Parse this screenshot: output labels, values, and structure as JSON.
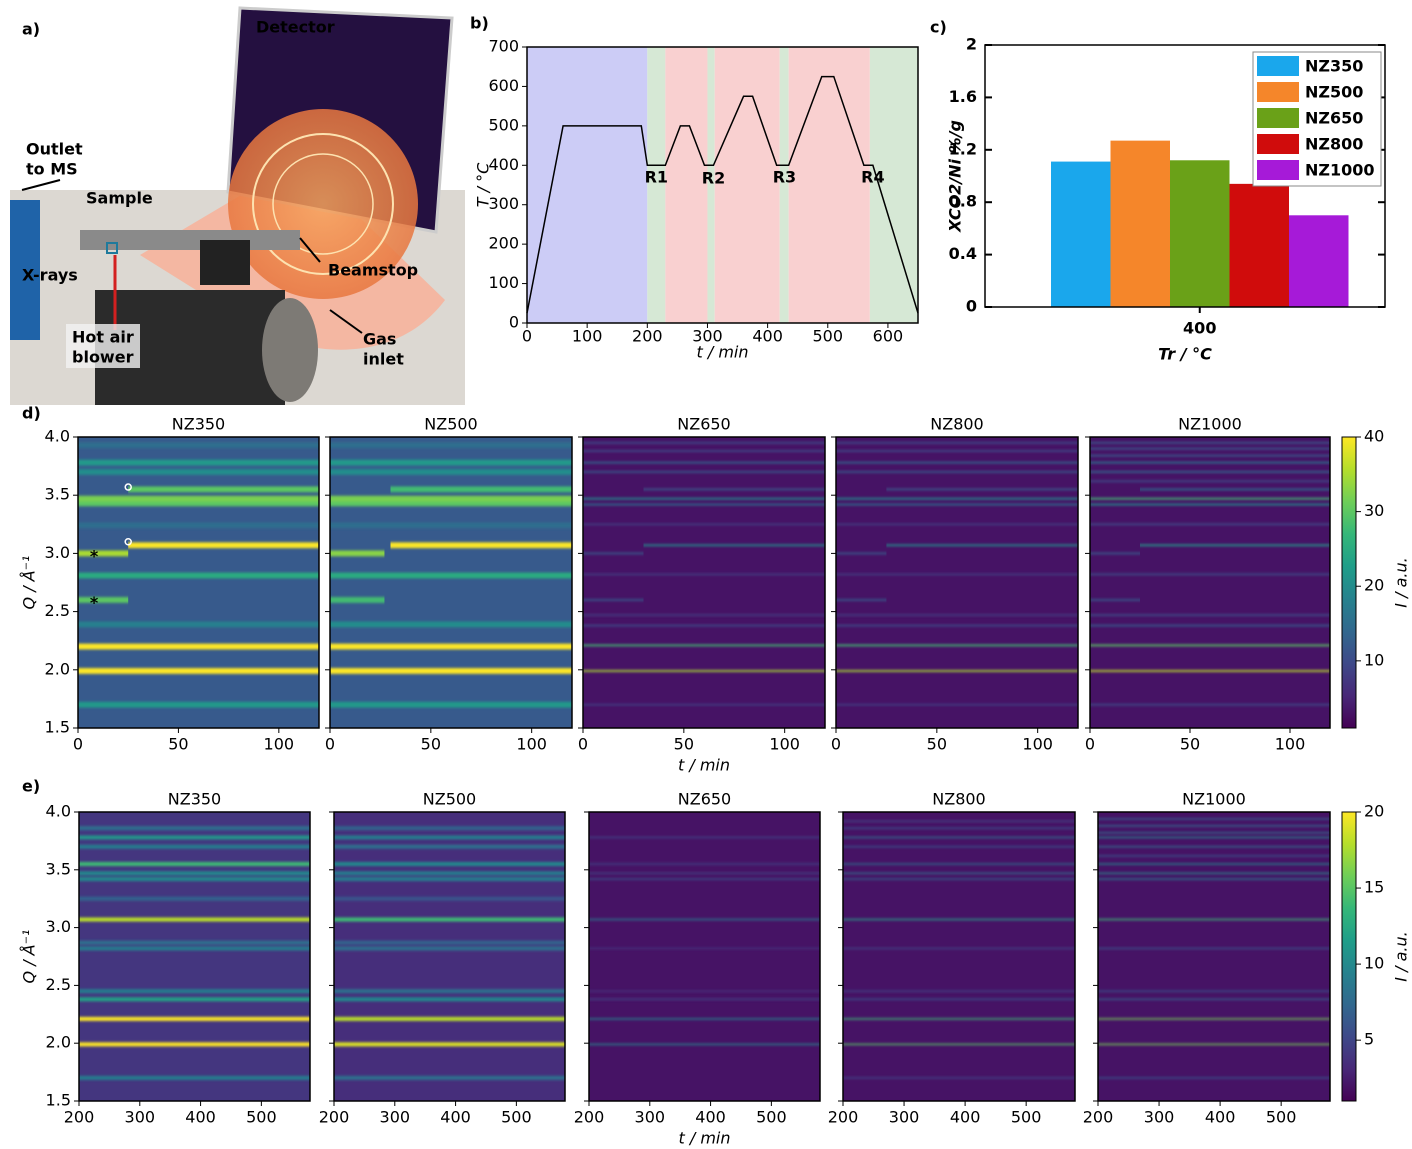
{
  "figure_a": {
    "label": "a)",
    "annotations": [
      {
        "lines": [
          "Detector"
        ],
        "color": "#ffffff"
      },
      {
        "lines": [
          "Outlet",
          "to MS"
        ],
        "color": "#000000"
      },
      {
        "lines": [
          "Sample"
        ],
        "color": "#1f7a9c"
      },
      {
        "lines": [
          "X-rays"
        ],
        "color": "#f08a24"
      },
      {
        "lines": [
          "Hot air",
          "blower"
        ],
        "color": "#d32020"
      },
      {
        "lines": [
          "Beamstop"
        ],
        "color": "#000000"
      },
      {
        "lines": [
          "Gas",
          "inlet"
        ],
        "color": "#000000"
      }
    ]
  },
  "chart_data": [
    {
      "type": "line",
      "panel_label": "b)",
      "x_label": "t / min",
      "y_label": "T / °C",
      "x": [
        0,
        60,
        190,
        200,
        230,
        255,
        270,
        295,
        310,
        360,
        375,
        415,
        435,
        490,
        510,
        560,
        575,
        650
      ],
      "values": [
        25,
        500,
        500,
        400,
        400,
        500,
        500,
        400,
        400,
        575,
        575,
        400,
        400,
        625,
        625,
        400,
        400,
        25
      ],
      "color": "#000000",
      "xlim": [
        0,
        650
      ],
      "xticks": [
        0,
        100,
        200,
        300,
        400,
        500,
        600
      ],
      "ylim": [
        0,
        700
      ],
      "yticks": [
        0,
        100,
        200,
        300,
        400,
        500,
        600,
        700
      ],
      "regions": [
        {
          "range": [
            0,
            200
          ],
          "color": "#ccccf6"
        },
        {
          "range": [
            200,
            230
          ],
          "color": "#d6e8d5"
        },
        {
          "range": [
            230,
            300
          ],
          "color": "#f9d0d0"
        },
        {
          "range": [
            300,
            312
          ],
          "color": "#d6e8d5"
        },
        {
          "range": [
            312,
            420
          ],
          "color": "#f9d0d0"
        },
        {
          "range": [
            420,
            435
          ],
          "color": "#d6e8d5"
        },
        {
          "range": [
            435,
            570
          ],
          "color": "#f9d0d0"
        },
        {
          "range": [
            570,
            650
          ],
          "color": "#d6e8d5"
        }
      ],
      "annotations": [
        {
          "text": "R1",
          "x": 215,
          "y": 368
        },
        {
          "text": "R2",
          "x": 310,
          "y": 365
        },
        {
          "text": "R3",
          "x": 428,
          "y": 368
        },
        {
          "text": "R4",
          "x": 575,
          "y": 368
        }
      ]
    },
    {
      "type": "bar",
      "panel_label": "c)",
      "x_label": "Tr / °C",
      "y_label": "XCO2/Ni %/g",
      "categories": [
        "400"
      ],
      "series": [
        {
          "name": "NZ350",
          "color": "#1aa7ec",
          "values": [
            1.11
          ]
        },
        {
          "name": "NZ500",
          "color": "#f5862a",
          "values": [
            1.27
          ]
        },
        {
          "name": "NZ650",
          "color": "#6aa118",
          "values": [
            1.12
          ]
        },
        {
          "name": "NZ800",
          "color": "#d00c0c",
          "values": [
            0.94
          ]
        },
        {
          "name": "NZ1000",
          "color": "#a61ad8",
          "values": [
            0.7
          ]
        }
      ],
      "ylim": [
        0,
        2
      ],
      "yticks": [
        0,
        0.4,
        0.8,
        1.2,
        1.6,
        2
      ],
      "legend": "upper right"
    },
    {
      "type": "heatmap",
      "panel_label": "d)",
      "x_label": "t / min",
      "y_label": "Q / Å⁻¹",
      "colorbar_label": "I / a.u.",
      "xlim": [
        0,
        120
      ],
      "xticks": [
        0,
        50,
        100
      ],
      "ylim": [
        1.5,
        4
      ],
      "yticks": [
        1.5,
        {
          "value": 2,
          "label": "2.0"
        },
        2.5,
        {
          "value": 3,
          "label": "3.0"
        },
        3.5,
        {
          "value": 4,
          "label": "4.0"
        }
      ],
      "zlim": [
        1,
        40
      ],
      "zticks": [
        10,
        20,
        30,
        40
      ],
      "panels": [
        {
          "title": "NZ350",
          "background": 12,
          "peak_width": 0.05,
          "bands": [
            [
              1.7,
              22
            ],
            [
              1.99,
              40
            ],
            [
              2.2,
              40
            ],
            [
              2.39,
              18
            ],
            [
              2.6,
              30,
              0,
              25
            ],
            [
              2.81,
              25
            ],
            [
              3.0,
              35,
              0,
              25
            ],
            [
              3.07,
              40,
              25,
              120
            ],
            [
              3.24,
              15
            ],
            [
              3.43,
              30
            ],
            [
              3.47,
              32
            ],
            [
              3.55,
              30,
              25,
              120
            ],
            [
              3.7,
              20
            ],
            [
              3.78,
              22
            ],
            [
              3.93,
              15
            ]
          ],
          "annotations": [
            {
              "text": "*",
              "t": 8,
              "q": 2.97
            },
            {
              "text": "*",
              "t": 8,
              "q": 2.57
            }
          ],
          "markers": [
            {
              "t": 25,
              "q": 3.57
            },
            {
              "t": 25,
              "q": 3.1
            }
          ]
        },
        {
          "title": "NZ500",
          "background": 12,
          "peak_width": 0.05,
          "bands": [
            [
              1.7,
              22
            ],
            [
              1.99,
              40
            ],
            [
              2.2,
              40
            ],
            [
              2.39,
              20
            ],
            [
              2.6,
              28,
              0,
              27
            ],
            [
              2.81,
              25
            ],
            [
              3.0,
              33,
              0,
              27
            ],
            [
              3.07,
              40,
              30,
              120
            ],
            [
              3.24,
              15
            ],
            [
              3.43,
              30
            ],
            [
              3.47,
              32
            ],
            [
              3.55,
              28,
              30,
              120
            ],
            [
              3.7,
              20
            ],
            [
              3.78,
              22
            ],
            [
              3.93,
              15
            ]
          ]
        },
        {
          "title": "NZ650",
          "background": 3,
          "peak_width": 0.015,
          "bands": [
            [
              1.7,
              8
            ],
            [
              1.99,
              35
            ],
            [
              2.21,
              28
            ],
            [
              2.38,
              10
            ],
            [
              2.47,
              8
            ],
            [
              2.6,
              12,
              0,
              30
            ],
            [
              2.82,
              8
            ],
            [
              3.0,
              12,
              0,
              30
            ],
            [
              3.07,
              20,
              30,
              120
            ],
            [
              3.25,
              8
            ],
            [
              3.42,
              15
            ],
            [
              3.47,
              20
            ],
            [
              3.55,
              12,
              30,
              120
            ],
            [
              3.7,
              12
            ],
            [
              3.78,
              14
            ],
            [
              3.88,
              10
            ],
            [
              3.95,
              10
            ]
          ]
        },
        {
          "title": "NZ800",
          "background": 3,
          "peak_width": 0.015,
          "bands": [
            [
              1.7,
              8
            ],
            [
              1.99,
              35
            ],
            [
              2.21,
              28
            ],
            [
              2.38,
              10
            ],
            [
              2.47,
              8
            ],
            [
              2.6,
              12,
              0,
              25
            ],
            [
              2.82,
              8
            ],
            [
              3.0,
              12,
              0,
              25
            ],
            [
              3.07,
              20,
              25,
              120
            ],
            [
              3.25,
              8
            ],
            [
              3.42,
              15
            ],
            [
              3.47,
              20
            ],
            [
              3.55,
              12,
              25,
              120
            ],
            [
              3.7,
              12
            ],
            [
              3.78,
              14
            ],
            [
              3.88,
              10
            ],
            [
              3.95,
              10
            ]
          ]
        },
        {
          "title": "NZ1000",
          "background": 3,
          "peak_width": 0.015,
          "bands": [
            [
              1.7,
              10
            ],
            [
              1.99,
              36
            ],
            [
              2.21,
              30
            ],
            [
              2.38,
              12
            ],
            [
              2.47,
              10
            ],
            [
              2.6,
              12,
              0,
              25
            ],
            [
              2.82,
              10
            ],
            [
              3.0,
              12,
              0,
              25
            ],
            [
              3.07,
              22,
              25,
              120
            ],
            [
              3.25,
              10
            ],
            [
              3.42,
              20
            ],
            [
              3.47,
              28
            ],
            [
              3.55,
              15,
              25,
              120
            ],
            [
              3.62,
              10
            ],
            [
              3.7,
              14
            ],
            [
              3.78,
              16
            ],
            [
              3.84,
              12
            ],
            [
              3.9,
              12
            ],
            [
              3.95,
              12
            ]
          ]
        }
      ]
    },
    {
      "type": "heatmap",
      "panel_label": "e)",
      "x_label": "t / min",
      "y_label": "Q / Å⁻¹",
      "colorbar_label": "I / a.u.",
      "xlim": [
        200,
        580
      ],
      "xticks": [
        200,
        300,
        400,
        500
      ],
      "ylim": [
        1.5,
        4
      ],
      "yticks": [
        1.5,
        {
          "value": 2,
          "label": "2.0"
        },
        2.5,
        {
          "value": 3,
          "label": "3.0"
        },
        3.5,
        {
          "value": 4,
          "label": "4.0"
        }
      ],
      "zlim": [
        1,
        20
      ],
      "zticks": [
        5,
        10,
        15,
        20
      ],
      "panels": [
        {
          "title": "NZ350",
          "background": 4,
          "peak_width": 0.035,
          "bands": [
            [
              1.7,
              9
            ],
            [
              1.99,
              20
            ],
            [
              2.21,
              20
            ],
            [
              2.38,
              12
            ],
            [
              2.45,
              9
            ],
            [
              2.82,
              9
            ],
            [
              2.87,
              8
            ],
            [
              3.07,
              18
            ],
            [
              3.25,
              7
            ],
            [
              3.42,
              10
            ],
            [
              3.47,
              10
            ],
            [
              3.55,
              14
            ],
            [
              3.7,
              9
            ],
            [
              3.78,
              11
            ],
            [
              3.86,
              8
            ]
          ]
        },
        {
          "title": "NZ500",
          "background": 3.5,
          "peak_width": 0.035,
          "bands": [
            [
              1.7,
              8
            ],
            [
              1.99,
              19
            ],
            [
              2.21,
              18
            ],
            [
              2.38,
              10
            ],
            [
              2.45,
              8
            ],
            [
              2.82,
              8
            ],
            [
              2.87,
              7
            ],
            [
              3.07,
              14
            ],
            [
              3.25,
              6
            ],
            [
              3.42,
              9
            ],
            [
              3.47,
              9
            ],
            [
              3.55,
              10
            ],
            [
              3.7,
              8
            ],
            [
              3.78,
              9
            ],
            [
              3.86,
              7
            ]
          ]
        },
        {
          "title": "NZ650",
          "background": 2,
          "peak_width": 0.012,
          "bands": [
            [
              1.99,
              10
            ],
            [
              2.21,
              10
            ],
            [
              2.38,
              5
            ],
            [
              2.45,
              4
            ],
            [
              2.82,
              4
            ],
            [
              3.07,
              9
            ],
            [
              3.42,
              6
            ],
            [
              3.47,
              5
            ],
            [
              3.55,
              5
            ],
            [
              3.78,
              5
            ]
          ]
        },
        {
          "title": "NZ800",
          "background": 2,
          "peak_width": 0.012,
          "bands": [
            [
              1.7,
              5
            ],
            [
              1.99,
              15
            ],
            [
              2.21,
              14
            ],
            [
              2.38,
              6
            ],
            [
              2.45,
              5
            ],
            [
              2.82,
              5
            ],
            [
              3.07,
              12
            ],
            [
              3.42,
              7
            ],
            [
              3.47,
              8
            ],
            [
              3.55,
              8
            ],
            [
              3.7,
              6
            ],
            [
              3.78,
              8
            ],
            [
              3.86,
              6
            ],
            [
              3.92,
              5
            ]
          ]
        },
        {
          "title": "NZ1000",
          "background": 2,
          "peak_width": 0.012,
          "bands": [
            [
              1.7,
              6
            ],
            [
              1.99,
              16
            ],
            [
              2.21,
              16
            ],
            [
              2.38,
              7
            ],
            [
              2.45,
              6
            ],
            [
              2.82,
              6
            ],
            [
              3.07,
              14
            ],
            [
              3.42,
              9
            ],
            [
              3.47,
              10
            ],
            [
              3.55,
              10
            ],
            [
              3.62,
              6
            ],
            [
              3.7,
              8
            ],
            [
              3.78,
              10
            ],
            [
              3.82,
              8
            ],
            [
              3.88,
              8
            ],
            [
              3.94,
              7
            ]
          ]
        }
      ]
    }
  ]
}
